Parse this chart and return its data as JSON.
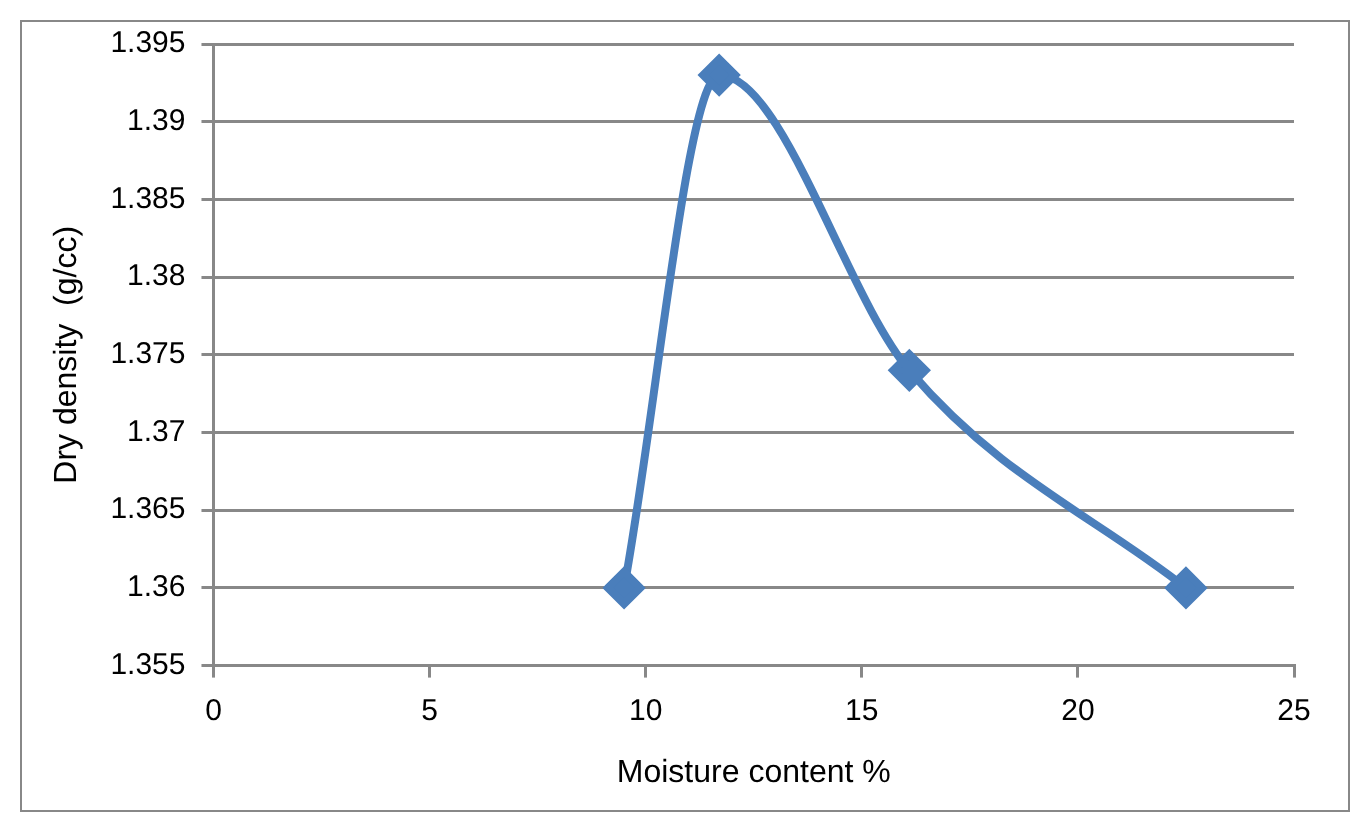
{
  "chart_data": {
    "type": "line",
    "xlabel": "Moisture content %",
    "ylabel": "Dry density  (g/cc)",
    "x": [
      9.5,
      11.7,
      16.1,
      22.5
    ],
    "series": [
      {
        "color": "#4a7ebb",
        "values": [
          1.36,
          1.393,
          1.374,
          1.36
        ]
      }
    ],
    "xlim": [
      0,
      25
    ],
    "xticks": [
      0,
      5,
      10,
      15,
      20,
      25
    ],
    "ylim": [
      1.355,
      1.395
    ],
    "yticks": [
      1.355,
      1.36,
      1.365,
      1.37,
      1.375,
      1.38,
      1.385,
      1.39,
      1.395
    ],
    "grid": "y",
    "legend": false,
    "marker": "diamond",
    "line_style": "solid"
  }
}
